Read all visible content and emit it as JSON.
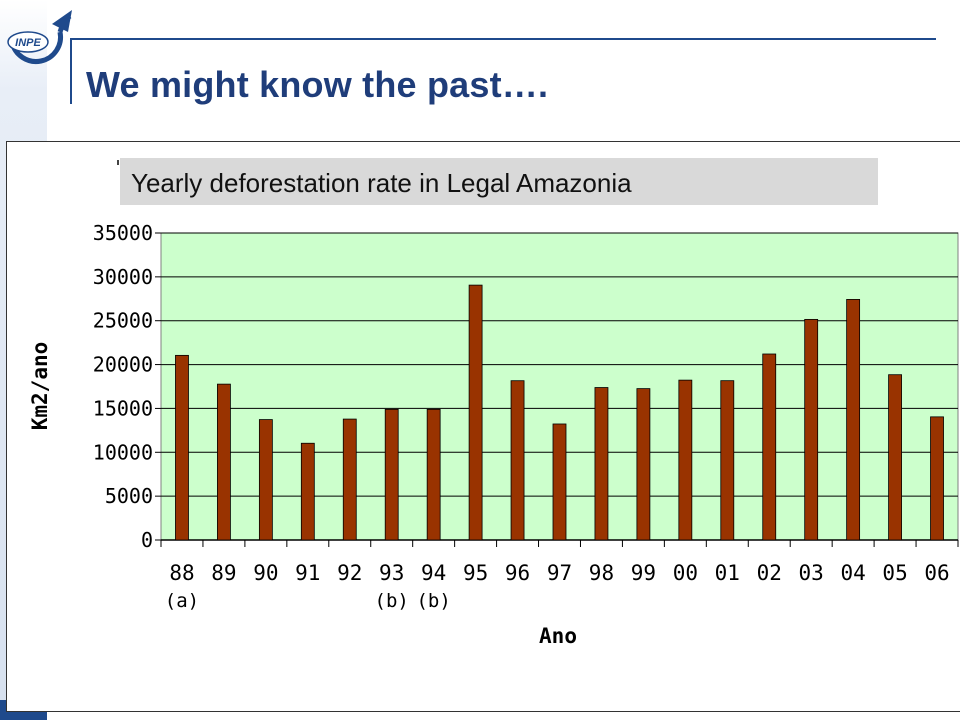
{
  "header": {
    "title": "We might know the past….",
    "logo_text": "INPE"
  },
  "colors": {
    "accent": "#1f4a8c",
    "plot_background": "#ccffcc",
    "bar": "#993300",
    "title_box": "#d9d9d9"
  },
  "chart_data": {
    "type": "bar",
    "title": "Yearly deforestation rate in Legal Amazonia",
    "xlabel": "Ano",
    "ylabel": "Km2/ano",
    "categories": [
      "88",
      "89",
      "90",
      "91",
      "92",
      "93",
      "94",
      "95",
      "96",
      "97",
      "98",
      "99",
      "00",
      "01",
      "02",
      "03",
      "04",
      "05",
      "06"
    ],
    "category_notes": [
      "(a)",
      "",
      "",
      "",
      "",
      "(b)",
      "(b)",
      "",
      "",
      "",
      "",
      "",
      "",
      "",
      "",
      "",
      "",
      "",
      ""
    ],
    "values": [
      21050,
      17770,
      13730,
      11030,
      13786,
      14896,
      14896,
      29059,
      18161,
      13227,
      17383,
      17259,
      18226,
      18165,
      21205,
      25151,
      27429,
      18846,
      14039
    ],
    "ylim": [
      0,
      35000
    ],
    "yticks": [
      0,
      5000,
      10000,
      15000,
      20000,
      25000,
      30000,
      35000
    ],
    "grid": true,
    "legend": "none"
  }
}
